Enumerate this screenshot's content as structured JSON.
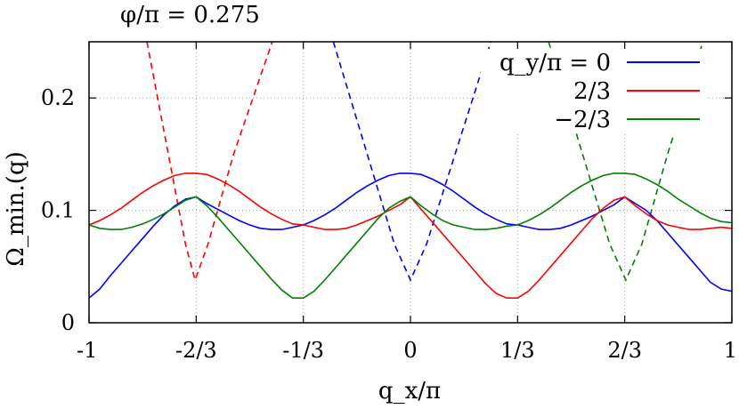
{
  "chart_data": {
    "type": "line",
    "title": "φ/π = 0.275",
    "xlabel": "q_x/π",
    "ylabel": "Ω_min.(q)",
    "xlim": [
      -1,
      1
    ],
    "ylim": [
      0,
      0.25
    ],
    "grid": true,
    "x_ticks": [
      {
        "value": -1,
        "label": "-1"
      },
      {
        "value": -0.6667,
        "label": "-2/3"
      },
      {
        "value": -0.3333,
        "label": "-1/3"
      },
      {
        "value": 0,
        "label": "0"
      },
      {
        "value": 0.3333,
        "label": "1/3"
      },
      {
        "value": 0.6667,
        "label": "2/3"
      },
      {
        "value": 1,
        "label": "1"
      }
    ],
    "y_ticks": [
      {
        "value": 0,
        "label": "0"
      },
      {
        "value": 0.1,
        "label": "0.1"
      },
      {
        "value": 0.2,
        "label": "0.2"
      }
    ],
    "legend_position": "top-right",
    "series": [
      {
        "name": "q_y/π = 0",
        "color": "#0000ff",
        "x": [
          -1.0,
          -0.9667,
          -0.9333,
          -0.9,
          -0.8667,
          -0.8333,
          -0.8,
          -0.7667,
          -0.7333,
          -0.7,
          -0.6667,
          -0.6333,
          -0.6,
          -0.5667,
          -0.5333,
          -0.5,
          -0.4667,
          -0.4333,
          -0.4,
          -0.3667,
          -0.3333,
          -0.3,
          -0.2667,
          -0.2333,
          -0.2,
          -0.1667,
          -0.1333,
          -0.1,
          -0.0667,
          -0.0333,
          0.0,
          0.0333,
          0.0667,
          0.1,
          0.1333,
          0.1667,
          0.2,
          0.2333,
          0.2667,
          0.3,
          0.3333,
          0.3667,
          0.4,
          0.4333,
          0.4667,
          0.5,
          0.5333,
          0.5667,
          0.6,
          0.6333,
          0.6667,
          0.7,
          0.7333,
          0.7667,
          0.8,
          0.8333,
          0.8667,
          0.9,
          0.9333,
          0.9667,
          1.0
        ],
        "y": [
          0.022,
          0.03,
          0.042,
          0.053,
          0.064,
          0.075,
          0.086,
          0.096,
          0.104,
          0.11,
          0.112,
          0.106,
          0.101,
          0.096,
          0.091,
          0.087,
          0.084,
          0.083,
          0.083,
          0.085,
          0.087,
          0.091,
          0.096,
          0.102,
          0.109,
          0.116,
          0.122,
          0.127,
          0.131,
          0.133,
          0.133,
          0.132,
          0.128,
          0.123,
          0.117,
          0.11,
          0.103,
          0.097,
          0.092,
          0.088,
          0.087,
          0.085,
          0.083,
          0.083,
          0.084,
          0.087,
          0.091,
          0.095,
          0.1,
          0.105,
          0.112,
          0.106,
          0.1,
          0.091,
          0.08,
          0.069,
          0.058,
          0.047,
          0.036,
          0.03,
          0.028
        ]
      },
      {
        "name": "2/3",
        "color": "#ff0000",
        "x": [
          -1.0,
          -0.9667,
          -0.9333,
          -0.9,
          -0.8667,
          -0.8333,
          -0.8,
          -0.7667,
          -0.7333,
          -0.7,
          -0.6667,
          -0.6333,
          -0.6,
          -0.5667,
          -0.5333,
          -0.5,
          -0.4667,
          -0.4333,
          -0.4,
          -0.3667,
          -0.3333,
          -0.3,
          -0.2667,
          -0.2333,
          -0.2,
          -0.1667,
          -0.1333,
          -0.1,
          -0.0667,
          -0.0333,
          0.0,
          0.0333,
          0.0667,
          0.1,
          0.1333,
          0.1667,
          0.2,
          0.2333,
          0.2667,
          0.3,
          0.3333,
          0.3667,
          0.4,
          0.4333,
          0.4667,
          0.5,
          0.5333,
          0.5667,
          0.6,
          0.6333,
          0.6667,
          0.7,
          0.7333,
          0.7667,
          0.8,
          0.8333,
          0.8667,
          0.9,
          0.9333,
          0.9667,
          1.0
        ],
        "y": [
          0.087,
          0.091,
          0.096,
          0.102,
          0.109,
          0.116,
          0.122,
          0.127,
          0.131,
          0.133,
          0.133,
          0.132,
          0.128,
          0.123,
          0.117,
          0.11,
          0.103,
          0.097,
          0.092,
          0.088,
          0.087,
          0.085,
          0.083,
          0.083,
          0.084,
          0.087,
          0.091,
          0.095,
          0.1,
          0.105,
          0.112,
          0.101,
          0.09,
          0.079,
          0.068,
          0.057,
          0.046,
          0.035,
          0.026,
          0.022,
          0.022,
          0.028,
          0.038,
          0.049,
          0.06,
          0.071,
          0.082,
          0.093,
          0.102,
          0.109,
          0.112,
          0.104,
          0.097,
          0.091,
          0.087,
          0.085,
          0.083,
          0.083,
          0.084,
          0.085,
          0.084
        ]
      },
      {
        "name": "−2/3",
        "color": "#008000",
        "x": [
          -1.0,
          -0.9667,
          -0.9333,
          -0.9,
          -0.8667,
          -0.8333,
          -0.8,
          -0.7667,
          -0.7333,
          -0.7,
          -0.6667,
          -0.6333,
          -0.6,
          -0.5667,
          -0.5333,
          -0.5,
          -0.4667,
          -0.4333,
          -0.4,
          -0.3667,
          -0.3333,
          -0.3,
          -0.2667,
          -0.2333,
          -0.2,
          -0.1667,
          -0.1333,
          -0.1,
          -0.0667,
          -0.0333,
          0.0,
          0.0333,
          0.0667,
          0.1,
          0.1333,
          0.1667,
          0.2,
          0.2333,
          0.2667,
          0.3,
          0.3333,
          0.3667,
          0.4,
          0.4333,
          0.4667,
          0.5,
          0.5333,
          0.5667,
          0.6,
          0.6333,
          0.6667,
          0.7,
          0.7333,
          0.7667,
          0.8,
          0.8333,
          0.8667,
          0.9,
          0.9333,
          0.9667,
          1.0
        ],
        "y": [
          0.087,
          0.084,
          0.083,
          0.083,
          0.085,
          0.088,
          0.092,
          0.097,
          0.103,
          0.109,
          0.112,
          0.104,
          0.094,
          0.083,
          0.072,
          0.061,
          0.05,
          0.039,
          0.029,
          0.022,
          0.022,
          0.028,
          0.038,
          0.049,
          0.06,
          0.071,
          0.082,
          0.093,
          0.102,
          0.108,
          0.112,
          0.104,
          0.097,
          0.091,
          0.087,
          0.085,
          0.083,
          0.083,
          0.084,
          0.086,
          0.087,
          0.091,
          0.096,
          0.102,
          0.109,
          0.116,
          0.122,
          0.127,
          0.131,
          0.133,
          0.133,
          0.132,
          0.128,
          0.123,
          0.117,
          0.11,
          0.104,
          0.098,
          0.093,
          0.09,
          0.089
        ]
      }
    ],
    "dashed_series": [
      {
        "color": "#ff0000",
        "x": [
          -0.82,
          -0.7,
          -0.67,
          -0.63,
          -0.55,
          -0.43
        ],
        "y": [
          0.25,
          0.07,
          0.038,
          0.07,
          0.15,
          0.25
        ]
      },
      {
        "color": "#0000ff",
        "x": [
          -0.24,
          -0.05,
          0.0,
          0.05,
          0.15,
          0.25
        ],
        "y": [
          0.25,
          0.07,
          0.038,
          0.07,
          0.16,
          0.25
        ]
      },
      {
        "color": "#008000",
        "x": [
          0.43,
          0.62,
          0.67,
          0.72,
          0.8,
          0.91
        ],
        "y": [
          0.25,
          0.07,
          0.038,
          0.07,
          0.15,
          0.25
        ]
      }
    ]
  }
}
